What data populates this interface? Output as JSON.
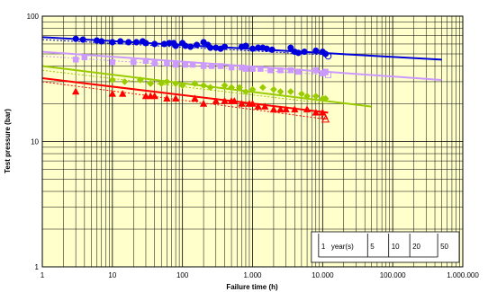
{
  "chart_data": {
    "type": "scatter",
    "xlabel": "Failure time (h)",
    "ylabel": "Test pressure (bar)",
    "x_scale": "log",
    "y_scale": "log",
    "xlim": [
      1,
      1000000
    ],
    "ylim": [
      1,
      100
    ],
    "x_ticks": [
      {
        "v": 1,
        "label": "1"
      },
      {
        "v": 10,
        "label": "10"
      },
      {
        "v": 100,
        "label": "100"
      },
      {
        "v": 1000,
        "label": "1.000"
      },
      {
        "v": 10000,
        "label": "10.000"
      },
      {
        "v": 100000,
        "label": "100.000"
      },
      {
        "v": 1000000,
        "label": "1.000.000"
      }
    ],
    "y_ticks": [
      {
        "v": 1,
        "label": "1"
      },
      {
        "v": 10,
        "label": "10"
      },
      {
        "v": 100,
        "label": "100"
      }
    ],
    "grid": true,
    "background_color": "#ffffcc",
    "years_scale": {
      "label_unit": "year(s)",
      "ticks": [
        {
          "years": 1,
          "label": "1"
        },
        {
          "years": 5,
          "label": "5"
        },
        {
          "years": 10,
          "label": "10"
        },
        {
          "years": 20,
          "label": "20"
        },
        {
          "years": 50,
          "label": "50"
        }
      ]
    },
    "series": [
      {
        "marker": "circle",
        "color": "#0000dd",
        "points": [
          [
            3,
            66
          ],
          [
            3.8,
            65
          ],
          [
            6,
            64
          ],
          [
            7,
            63
          ],
          [
            10,
            62
          ],
          [
            13,
            63
          ],
          [
            17,
            62
          ],
          [
            22,
            62
          ],
          [
            27,
            63
          ],
          [
            30,
            61
          ],
          [
            40,
            60
          ],
          [
            55,
            60
          ],
          [
            65,
            61
          ],
          [
            75,
            61
          ],
          [
            80,
            58
          ],
          [
            100,
            61
          ],
          [
            110,
            58
          ],
          [
            130,
            57
          ],
          [
            160,
            59
          ],
          [
            200,
            62
          ],
          [
            230,
            59
          ],
          [
            250,
            56
          ],
          [
            300,
            56
          ],
          [
            350,
            55
          ],
          [
            400,
            57
          ],
          [
            700,
            57
          ],
          [
            800,
            58
          ],
          [
            1000,
            55
          ],
          [
            1200,
            56
          ],
          [
            1400,
            56
          ],
          [
            1600,
            55
          ],
          [
            1900,
            54
          ],
          [
            3500,
            56
          ],
          [
            4000,
            52
          ],
          [
            4500,
            51
          ],
          [
            5500,
            52
          ],
          [
            8000,
            53
          ],
          [
            10000,
            52
          ],
          [
            11000,
            50
          ]
        ],
        "open_points": [
          [
            12000,
            48
          ]
        ],
        "fit": [
          [
            1,
            68
          ],
          [
            500000,
            45
          ]
        ],
        "fit_lower": [
          [
            1,
            65
          ],
          [
            12000,
            49
          ]
        ]
      },
      {
        "marker": "square",
        "color": "#cc99ff",
        "points": [
          [
            3,
            45
          ],
          [
            4,
            47
          ],
          [
            10,
            43
          ],
          [
            20,
            43
          ],
          [
            30,
            44
          ],
          [
            40,
            42
          ],
          [
            60,
            42
          ],
          [
            80,
            41
          ],
          [
            110,
            41
          ],
          [
            140,
            41
          ],
          [
            200,
            40
          ],
          [
            260,
            40
          ],
          [
            350,
            40
          ],
          [
            500,
            39
          ],
          [
            700,
            39
          ],
          [
            800,
            38
          ],
          [
            1000,
            38
          ],
          [
            1300,
            38
          ],
          [
            1800,
            37
          ],
          [
            2500,
            37
          ],
          [
            3500,
            37
          ],
          [
            4500,
            36
          ],
          [
            8000,
            37
          ],
          [
            10000,
            35
          ],
          [
            11000,
            36
          ]
        ],
        "open_points": [
          [
            12000,
            34
          ]
        ],
        "fit": [
          [
            1,
            52
          ],
          [
            500000,
            31
          ]
        ],
        "fit_lower": [
          [
            1,
            48
          ],
          [
            12000,
            34
          ]
        ]
      },
      {
        "marker": "diamond",
        "color": "#99cc00",
        "points": [
          [
            10,
            31
          ],
          [
            15,
            30
          ],
          [
            25,
            31
          ],
          [
            35,
            29
          ],
          [
            50,
            29
          ],
          [
            60,
            30
          ],
          [
            80,
            29
          ],
          [
            100,
            28
          ],
          [
            150,
            29
          ],
          [
            200,
            28
          ],
          [
            250,
            27
          ],
          [
            400,
            28
          ],
          [
            500,
            27
          ],
          [
            650,
            27
          ],
          [
            800,
            25
          ],
          [
            1000,
            26
          ],
          [
            1400,
            27
          ],
          [
            2000,
            26
          ],
          [
            2500,
            25
          ],
          [
            3500,
            25
          ],
          [
            5000,
            24
          ],
          [
            6000,
            23
          ],
          [
            8000,
            23
          ],
          [
            10000,
            22
          ],
          [
            11000,
            22
          ]
        ],
        "open_points": [],
        "fit": [
          [
            1,
            40
          ],
          [
            50000,
            19
          ]
        ],
        "fit_lower": [
          [
            1,
            37
          ],
          [
            12000,
            20
          ]
        ]
      },
      {
        "marker": "triangle",
        "color": "#ff0000",
        "points": [
          [
            3,
            25
          ],
          [
            10,
            24
          ],
          [
            14,
            24
          ],
          [
            30,
            23
          ],
          [
            35,
            23
          ],
          [
            40,
            23
          ],
          [
            60,
            22
          ],
          [
            80,
            22
          ],
          [
            150,
            22
          ],
          [
            200,
            20
          ],
          [
            300,
            21
          ],
          [
            400,
            21
          ],
          [
            500,
            21
          ],
          [
            550,
            21
          ],
          [
            700,
            20
          ],
          [
            900,
            20
          ],
          [
            1000,
            20
          ],
          [
            1200,
            19
          ],
          [
            1500,
            19
          ],
          [
            2000,
            18
          ],
          [
            2500,
            18
          ],
          [
            3000,
            18
          ],
          [
            4000,
            18
          ],
          [
            6000,
            18
          ],
          [
            8000,
            17
          ],
          [
            10000,
            17
          ]
        ],
        "open_points": [
          [
            10500,
            16
          ],
          [
            11000,
            15
          ]
        ],
        "fit": [
          [
            1,
            32
          ],
          [
            12000,
            17
          ]
        ],
        "fit_lower": [
          [
            1,
            30
          ],
          [
            12000,
            15
          ]
        ]
      }
    ]
  }
}
